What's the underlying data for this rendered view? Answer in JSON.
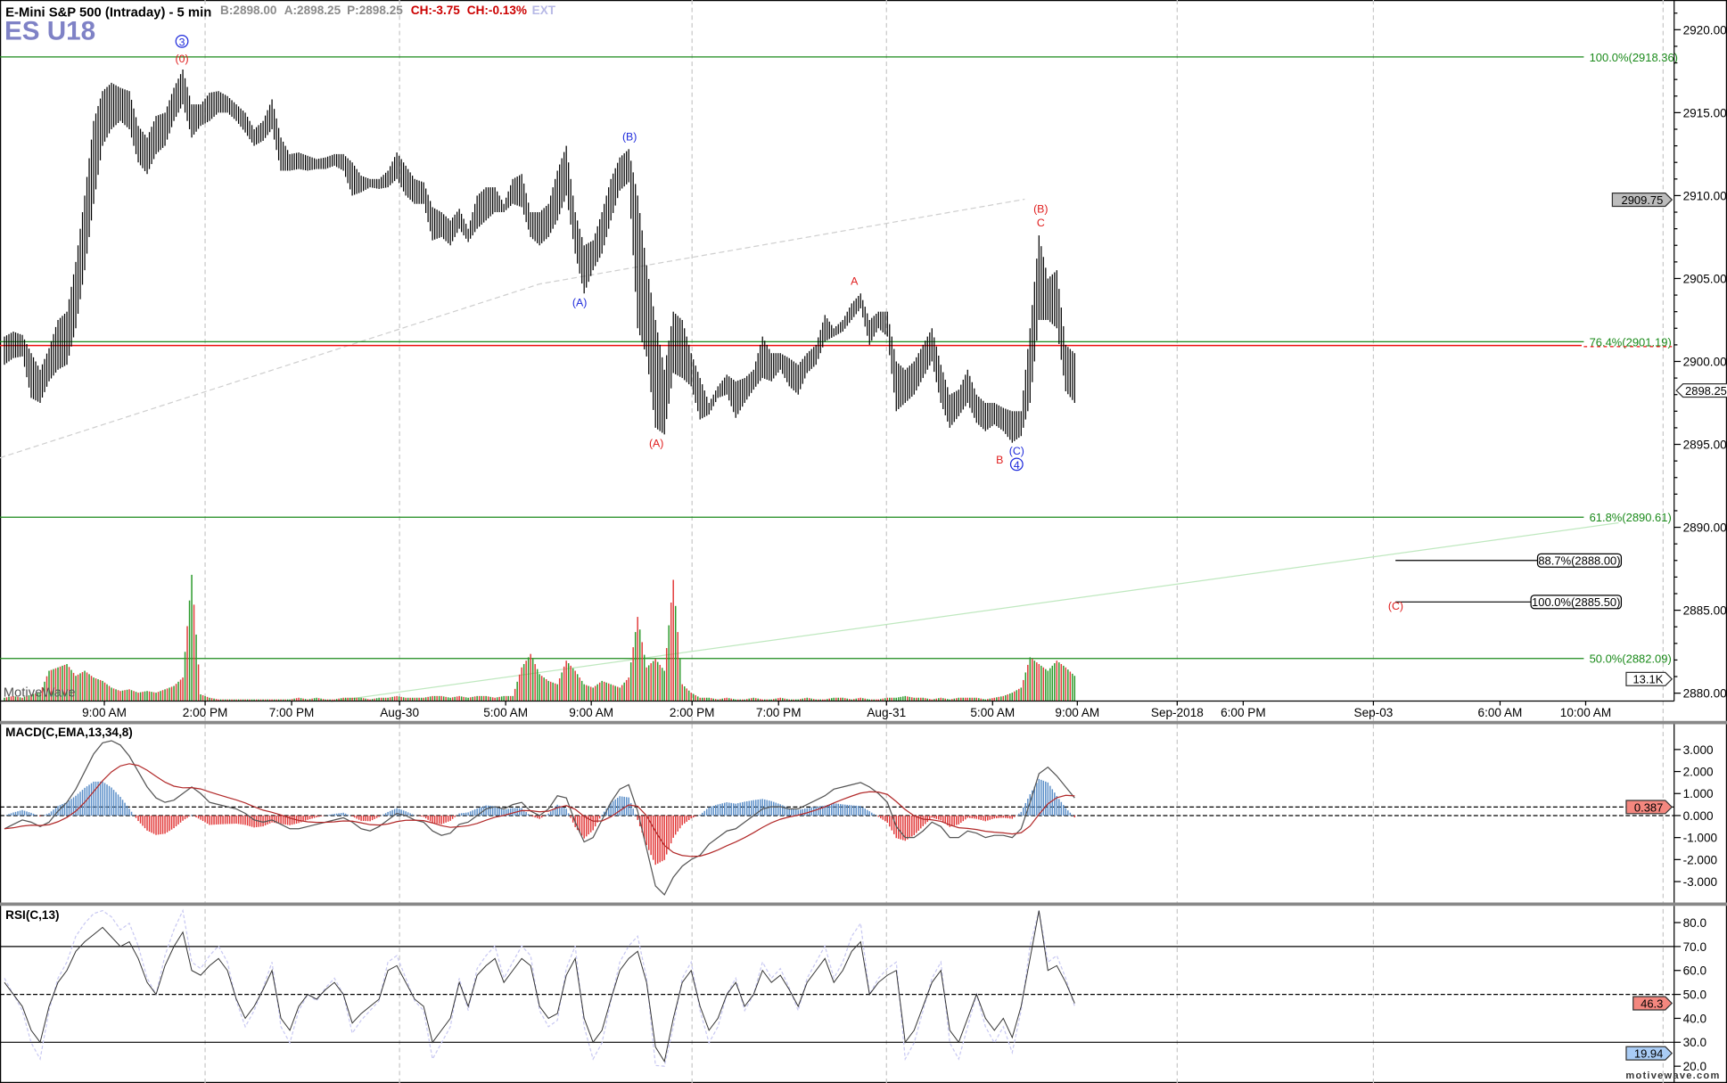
{
  "header": {
    "title": "E-Mini S&P 500 (Intraday) - 5 min",
    "symbol": "ES U18",
    "bid": "B:2898.00",
    "ask": "A:2898.25",
    "last": "P:2898.25",
    "change": "CH:-3.75",
    "change_pct": "CH:-0.13%",
    "ext": "EXT"
  },
  "watermark": "MotiveWave",
  "footer_brand": "motivewave.com",
  "colors": {
    "up": "#2a9a2a",
    "down": "#e23a3a",
    "fib": "#1a8a1a",
    "symbol": "#7f82c6",
    "wave_blue": "#1f2bdc",
    "wave_red": "#e01c1c",
    "macd_hist_up": "#5b8fc9",
    "macd_hist_down": "#e23a3a"
  },
  "chart_data": [
    {
      "type": "ohlc",
      "pane": "price",
      "note_units": "price",
      "ylim": [
        2879.5,
        2921.5
      ],
      "y_ticks": [
        "2920.00",
        "2915.00",
        "2910.00",
        "2905.00",
        "2900.00",
        "2895.00",
        "2890.00",
        "2885.00",
        "2880.00"
      ],
      "x_ticks": [
        {
          "label": "9:00 AM",
          "at": 11.2,
          "grid": false
        },
        {
          "label": "2:00 PM",
          "at": 22.5,
          "grid": true
        },
        {
          "label": "7:00 PM",
          "at": 32.2,
          "grid": false
        },
        {
          "label": "Aug-30",
          "at": 44.3,
          "grid": true
        },
        {
          "label": "5:00 AM",
          "at": 56.2,
          "grid": false
        },
        {
          "label": "9:00 AM",
          "at": 65.8,
          "grid": false
        },
        {
          "label": "2:00 PM",
          "at": 77.1,
          "grid": true
        },
        {
          "label": "7:00 PM",
          "at": 86.8,
          "grid": false
        },
        {
          "label": "Aug-31",
          "at": 98.9,
          "grid": true
        },
        {
          "label": "5:00 AM",
          "at": 110.8,
          "grid": false
        },
        {
          "label": "9:00 AM",
          "at": 120.3,
          "grid": false
        },
        {
          "label": "Sep-2018",
          "at": 131.5,
          "grid": true
        },
        {
          "label": "6:00 PM",
          "at": 138.9,
          "grid": false
        },
        {
          "label": "Sep-03",
          "at": 153.5,
          "grid": true
        },
        {
          "label": "6:00 AM",
          "at": 167.7,
          "grid": false
        },
        {
          "label": "10:00 AM",
          "at": 177.3,
          "grid": false
        }
      ],
      "bars_high_low": [
        [
          2901.5,
          2899.8
        ],
        [
          2901.8,
          2900.2
        ],
        [
          2901.6,
          2900.3
        ],
        [
          2900.5,
          2897.8
        ],
        [
          2899.5,
          2897.5
        ],
        [
          2900.8,
          2898.8
        ],
        [
          2902.5,
          2899.5
        ],
        [
          2903.0,
          2899.8
        ],
        [
          2906.0,
          2902.0
        ],
        [
          2910.0,
          2905.5
        ],
        [
          2914.5,
          2909.5
        ],
        [
          2916.3,
          2913.0
        ],
        [
          2916.8,
          2914.0
        ],
        [
          2916.5,
          2914.5
        ],
        [
          2916.3,
          2914.0
        ],
        [
          2914.2,
          2912.0
        ],
        [
          2913.5,
          2911.3
        ],
        [
          2914.8,
          2912.5
        ],
        [
          2915.0,
          2913.0
        ],
        [
          2916.5,
          2914.5
        ],
        [
          2917.6,
          2915.5
        ],
        [
          2915.5,
          2913.5
        ],
        [
          2915.5,
          2914.2
        ],
        [
          2916.2,
          2914.5
        ],
        [
          2916.3,
          2915.0
        ],
        [
          2916.0,
          2915.0
        ],
        [
          2915.5,
          2914.5
        ],
        [
          2915.0,
          2913.8
        ],
        [
          2914.0,
          2913.0
        ],
        [
          2914.5,
          2913.3
        ],
        [
          2915.8,
          2914.0
        ],
        [
          2913.5,
          2911.5
        ],
        [
          2912.5,
          2911.5
        ],
        [
          2912.6,
          2911.6
        ],
        [
          2912.4,
          2911.5
        ],
        [
          2912.2,
          2911.6
        ],
        [
          2912.3,
          2911.6
        ],
        [
          2912.5,
          2911.8
        ],
        [
          2912.5,
          2911.5
        ],
        [
          2912.0,
          2910.0
        ],
        [
          2911.2,
          2910.2
        ],
        [
          2911.0,
          2910.5
        ],
        [
          2911.0,
          2910.4
        ],
        [
          2911.5,
          2910.5
        ],
        [
          2912.6,
          2911.0
        ],
        [
          2911.8,
          2910.0
        ],
        [
          2911.0,
          2909.5
        ],
        [
          2910.8,
          2909.5
        ],
        [
          2909.3,
          2907.3
        ],
        [
          2909.0,
          2907.5
        ],
        [
          2908.5,
          2907.0
        ],
        [
          2909.2,
          2908.0
        ],
        [
          2908.0,
          2907.2
        ],
        [
          2910.0,
          2908.0
        ],
        [
          2910.5,
          2908.5
        ],
        [
          2910.5,
          2909.0
        ],
        [
          2909.5,
          2909.0
        ],
        [
          2911.0,
          2909.5
        ],
        [
          2911.3,
          2909.3
        ],
        [
          2909.0,
          2907.5
        ],
        [
          2909.0,
          2907.0
        ],
        [
          2909.5,
          2907.5
        ],
        [
          2911.5,
          2908.5
        ],
        [
          2913.0,
          2910.0
        ],
        [
          2909.0,
          2906.5
        ],
        [
          2907.0,
          2904.1
        ],
        [
          2907.3,
          2905.5
        ],
        [
          2909.0,
          2906.5
        ],
        [
          2911.0,
          2908.5
        ],
        [
          2912.3,
          2910.3
        ],
        [
          2912.8,
          2910.8
        ],
        [
          2910.0,
          2902.0
        ],
        [
          2905.8,
          2900.3
        ],
        [
          2902.5,
          2896.0
        ],
        [
          2899.5,
          2895.6
        ],
        [
          2903.0,
          2899.3
        ],
        [
          2902.5,
          2899.0
        ],
        [
          2900.5,
          2898.5
        ],
        [
          2899.0,
          2896.5
        ],
        [
          2897.5,
          2896.8
        ],
        [
          2898.5,
          2897.8
        ],
        [
          2899.2,
          2898.0
        ],
        [
          2898.8,
          2896.6
        ],
        [
          2899.0,
          2897.5
        ],
        [
          2899.5,
          2898.3
        ],
        [
          2901.5,
          2899.0
        ],
        [
          2900.5,
          2898.8
        ],
        [
          2900.5,
          2899.5
        ],
        [
          2900.2,
          2898.5
        ],
        [
          2899.8,
          2898.0
        ],
        [
          2900.5,
          2899.3
        ],
        [
          2901.0,
          2899.8
        ],
        [
          2902.8,
          2901.2
        ],
        [
          2902.0,
          2901.5
        ],
        [
          2902.5,
          2901.8
        ],
        [
          2903.5,
          2902.5
        ],
        [
          2904.1,
          2903.2
        ],
        [
          2902.5,
          2901.0
        ],
        [
          2903.0,
          2902.0
        ],
        [
          2903.0,
          2901.5
        ],
        [
          2900.0,
          2897.0
        ],
        [
          2899.5,
          2897.5
        ],
        [
          2900.0,
          2898.0
        ],
        [
          2901.0,
          2899.0
        ],
        [
          2902.0,
          2900.0
        ],
        [
          2899.8,
          2897.5
        ],
        [
          2898.0,
          2896.0
        ],
        [
          2898.3,
          2896.7
        ],
        [
          2899.5,
          2897.5
        ],
        [
          2898.0,
          2896.3
        ],
        [
          2897.5,
          2895.8
        ],
        [
          2897.5,
          2896.2
        ],
        [
          2897.2,
          2895.8
        ],
        [
          2897.0,
          2895.1
        ],
        [
          2897.0,
          2895.5
        ],
        [
          2902.0,
          2897.5
        ],
        [
          2907.6,
          2902.5
        ],
        [
          2905.0,
          2902.5
        ],
        [
          2905.5,
          2902.0
        ],
        [
          2901.0,
          2898.2
        ],
        [
          2900.5,
          2897.5
        ]
      ],
      "volume_k": [
        2,
        3,
        2,
        4,
        5,
        18,
        20,
        22,
        15,
        18,
        14,
        12,
        8,
        6,
        7,
        5,
        6,
        5,
        7,
        9,
        14,
        75,
        4,
        2,
        1,
        1,
        1,
        1,
        1,
        1,
        1,
        1,
        1,
        2,
        1,
        2,
        1,
        1,
        2,
        2,
        2,
        1,
        2,
        2,
        3,
        2,
        2,
        2,
        3,
        3,
        2,
        3,
        2,
        3,
        3,
        2,
        3,
        3,
        20,
        28,
        16,
        12,
        10,
        24,
        18,
        10,
        8,
        12,
        10,
        8,
        14,
        50,
        20,
        25,
        18,
        72,
        10,
        5,
        2,
        2,
        1,
        2,
        1,
        1,
        2,
        1,
        1,
        2,
        1,
        1,
        2,
        1,
        1,
        2,
        2,
        1,
        2,
        1,
        1,
        2,
        2,
        3,
        2,
        2,
        1,
        2,
        1,
        2,
        2,
        2,
        1,
        2,
        3,
        5,
        8,
        26,
        22,
        18,
        24,
        20,
        15
      ],
      "volume_tag": "13.1K",
      "last_price_tag": "2898.25",
      "ref_price_tag": "2909.75",
      "fib_levels": [
        {
          "label": "100.0%(2918.36)",
          "price": 2918.36
        },
        {
          "label": "76.4%(2901.19)",
          "price": 2901.19
        },
        {
          "label": "61.8%(2890.61)",
          "price": 2890.61
        },
        {
          "label": "50.0%(2882.09)",
          "price": 2882.09
        }
      ],
      "red_level": 2900.96,
      "projection_levels": [
        {
          "label": "88.7%(2888.00)",
          "price": 2888.0
        },
        {
          "label": "100.0%(2885.50)",
          "price": 2885.5
        }
      ],
      "trendlines": [
        {
          "style": "dashed-gray",
          "points": [
            [
              -0.5,
              2894.19
            ],
            [
              60,
              2904.67
            ],
            [
              114.4,
              2909.78
            ]
          ]
        },
        {
          "style": "light-green",
          "points": [
            [
              36.6,
              2879.5
            ],
            [
              181,
              2890.27
            ]
          ]
        }
      ],
      "wave_labels": [
        {
          "text": "3",
          "circled": true,
          "color": "blue",
          "at": 19.9,
          "price": 2919.1
        },
        {
          "text": "(0)",
          "circled": false,
          "color": "red",
          "at": 19.9,
          "price": 2918.1
        },
        {
          "text": "(B)",
          "circled": false,
          "color": "blue",
          "at": 70.1,
          "price": 2913.4
        },
        {
          "text": "(A)",
          "circled": false,
          "color": "blue",
          "at": 64.5,
          "price": 2903.4
        },
        {
          "text": "(A)",
          "circled": false,
          "color": "red",
          "at": 73.1,
          "price": 2894.9
        },
        {
          "text": "A",
          "circled": false,
          "color": "red",
          "at": 95.3,
          "price": 2904.7
        },
        {
          "text": "(B)",
          "circled": false,
          "color": "red",
          "at": 116.2,
          "price": 2909.05
        },
        {
          "text": "C",
          "circled": false,
          "color": "red",
          "at": 116.2,
          "price": 2908.2
        },
        {
          "text": "B",
          "circled": false,
          "color": "red",
          "at": 111.6,
          "price": 2893.9
        },
        {
          "text": "(C)",
          "circled": false,
          "color": "blue",
          "at": 113.5,
          "price": 2894.45
        },
        {
          "text": "4",
          "circled": true,
          "color": "blue",
          "at": 113.5,
          "price": 2893.6
        },
        {
          "text": "(C)",
          "circled": false,
          "color": "red",
          "at": 156,
          "price": 2885.1
        }
      ]
    },
    {
      "type": "line",
      "pane": "macd",
      "title": "MACD(C,EMA,13,34,8)",
      "ylim": [
        -4,
        4
      ],
      "y_ticks": [
        "3.000",
        "2.000",
        "1.000",
        "0.000",
        "-1.000",
        "-2.000",
        "-3.000"
      ],
      "tag": "0.387",
      "tag_value": 0.387,
      "macd": [
        -0.6,
        -0.4,
        -0.2,
        -0.3,
        -0.5,
        -0.3,
        0.2,
        0.6,
        1.2,
        2.0,
        2.8,
        3.3,
        3.4,
        3.2,
        2.7,
        2.0,
        1.3,
        0.8,
        0.6,
        0.7,
        1.0,
        1.3,
        1.0,
        0.6,
        0.5,
        0.4,
        0.3,
        0.1,
        -0.2,
        -0.3,
        -0.2,
        -0.4,
        -0.6,
        -0.6,
        -0.5,
        -0.4,
        -0.3,
        -0.2,
        -0.1,
        -0.3,
        -0.6,
        -0.7,
        -0.5,
        -0.2,
        0.1,
        0.0,
        -0.2,
        -0.3,
        -0.7,
        -0.9,
        -0.8,
        -0.4,
        -0.3,
        0.0,
        0.3,
        0.4,
        0.3,
        0.5,
        0.6,
        0.2,
        0.0,
        0.3,
        0.9,
        0.8,
        -0.3,
        -1.2,
        -1.0,
        -0.2,
        0.6,
        1.2,
        1.4,
        0.2,
        -1.5,
        -3.2,
        -3.6,
        -2.8,
        -2.3,
        -2.0,
        -1.8,
        -1.3,
        -1.0,
        -0.7,
        -0.6,
        -0.3,
        0.0,
        0.3,
        0.4,
        0.4,
        0.3,
        0.3,
        0.5,
        0.7,
        0.9,
        1.2,
        1.3,
        1.4,
        1.5,
        1.3,
        1.0,
        0.6,
        -0.5,
        -1.0,
        -1.0,
        -0.7,
        -0.3,
        -0.5,
        -1.0,
        -1.0,
        -0.7,
        -0.8,
        -1.0,
        -0.9,
        -0.9,
        -1.0,
        -0.6,
        0.6,
        1.9,
        2.2,
        1.8,
        1.3,
        0.8
      ]
    },
    {
      "type": "line",
      "pane": "rsi",
      "title": "RSI(C,13)",
      "ylim": [
        18,
        88
      ],
      "y_ticks": [
        "80.0",
        "70.0",
        "60.0",
        "50.0",
        "40.0",
        "30.0",
        "20.0"
      ],
      "levels": [
        70,
        50,
        30
      ],
      "tag_value": "46.3",
      "tag_low": "19.94",
      "rsi": [
        55,
        50,
        45,
        35,
        30,
        45,
        55,
        60,
        68,
        72,
        75,
        78,
        74,
        70,
        72,
        65,
        55,
        50,
        62,
        70,
        76,
        60,
        58,
        62,
        65,
        60,
        48,
        40,
        45,
        52,
        60,
        40,
        35,
        45,
        50,
        48,
        52,
        55,
        50,
        38,
        42,
        45,
        48,
        60,
        62,
        55,
        48,
        45,
        30,
        35,
        40,
        55,
        45,
        58,
        62,
        65,
        55,
        60,
        65,
        62,
        45,
        40,
        42,
        58,
        65,
        40,
        30,
        35,
        48,
        60,
        65,
        68,
        55,
        28,
        22,
        40,
        55,
        60,
        45,
        35,
        40,
        50,
        55,
        45,
        50,
        60,
        55,
        58,
        52,
        45,
        55,
        60,
        65,
        55,
        60,
        68,
        72,
        50,
        55,
        58,
        60,
        30,
        35,
        45,
        55,
        60,
        35,
        30,
        40,
        50,
        40,
        35,
        40,
        32,
        45,
        65,
        85,
        60,
        62,
        55,
        46.3
      ]
    }
  ]
}
